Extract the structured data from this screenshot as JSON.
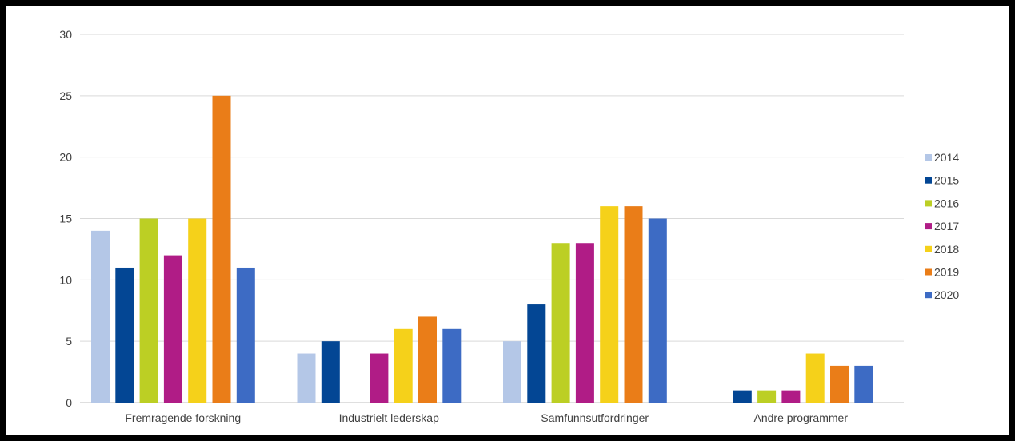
{
  "chart_data": {
    "type": "bar",
    "title": "",
    "xlabel": "",
    "ylabel": "",
    "ylim": [
      0,
      30
    ],
    "yticks": [
      0,
      5,
      10,
      15,
      20,
      25,
      30
    ],
    "grid": true,
    "legend_position": "right",
    "categories": [
      "Fremragende forskning",
      "Industrielt lederskap",
      "Samfunnsutfordringer",
      "Andre programmer"
    ],
    "series": [
      {
        "name": "2014",
        "color": "#b4c7e7",
        "values": [
          14,
          4,
          5,
          0
        ]
      },
      {
        "name": "2015",
        "color": "#034694",
        "values": [
          11,
          5,
          8,
          1
        ]
      },
      {
        "name": "2016",
        "color": "#bccf24",
        "values": [
          15,
          0,
          13,
          1
        ]
      },
      {
        "name": "2017",
        "color": "#b01c86",
        "values": [
          12,
          4,
          13,
          1
        ]
      },
      {
        "name": "2018",
        "color": "#f5d11a",
        "values": [
          15,
          6,
          16,
          4
        ]
      },
      {
        "name": "2019",
        "color": "#ea7d18",
        "values": [
          25,
          7,
          16,
          3
        ]
      },
      {
        "name": "2020",
        "color": "#3d6bc4",
        "values": [
          11,
          6,
          15,
          3
        ]
      }
    ]
  }
}
